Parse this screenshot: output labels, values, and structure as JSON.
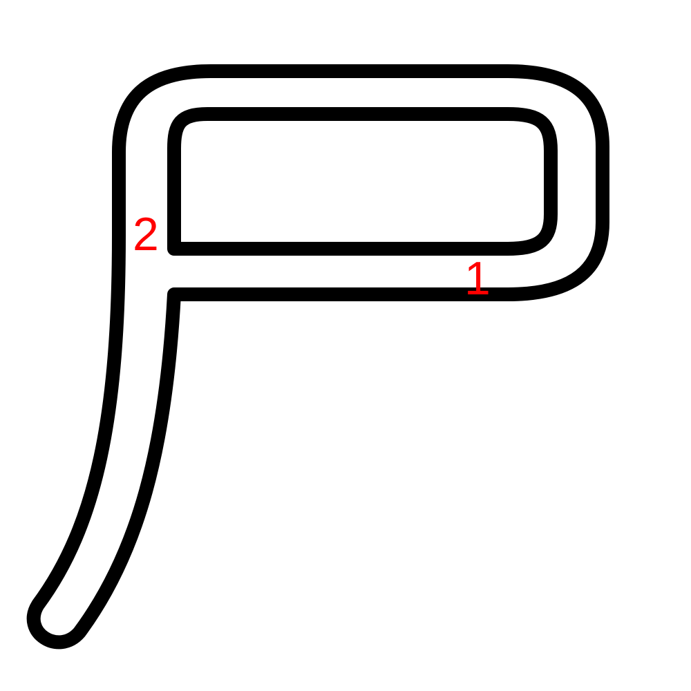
{
  "colors": {
    "background": "#ffffff",
    "outline": "#000000",
    "label": "#ff0000"
  },
  "strokes": [
    {
      "order": 1,
      "label": "1"
    },
    {
      "order": 2,
      "label": "2"
    }
  ]
}
